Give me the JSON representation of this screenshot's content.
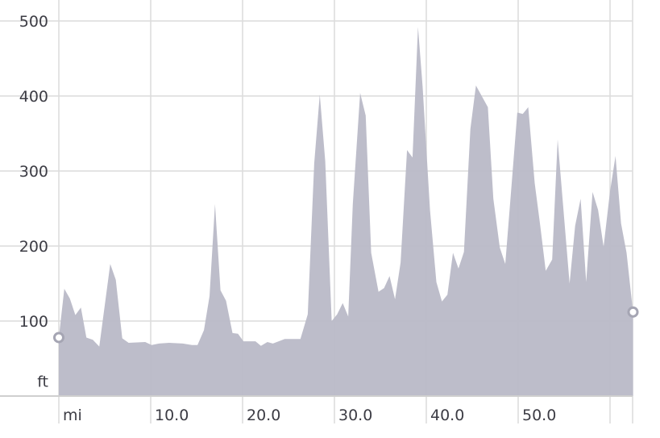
{
  "chart_data": {
    "type": "area",
    "xlabel": "mi",
    "ylabel": "ft",
    "xlim": [
      0,
      62.5
    ],
    "ylim": [
      0,
      500
    ],
    "grid": true,
    "x_ticks": [
      {
        "value": 0,
        "label": "mi"
      },
      {
        "value": 10,
        "label": "10.0"
      },
      {
        "value": 20,
        "label": "20.0"
      },
      {
        "value": 30,
        "label": "30.0"
      },
      {
        "value": 40,
        "label": "40.0"
      },
      {
        "value": 50,
        "label": "50.0"
      },
      {
        "value": 60,
        "label": ""
      }
    ],
    "y_ticks": [
      {
        "value": 500,
        "label": "500"
      },
      {
        "value": 400,
        "label": "400"
      },
      {
        "value": 300,
        "label": "300"
      },
      {
        "value": 200,
        "label": "200"
      },
      {
        "value": 100,
        "label": "100"
      },
      {
        "value": 20,
        "label": "ft"
      }
    ],
    "fill_color": "#b9b9c7",
    "grid_color": "#dcdcdc",
    "x": [
      0,
      0.6,
      1.2,
      1.8,
      2.4,
      3.0,
      3.7,
      4.4,
      5.6,
      6.2,
      6.9,
      7.6,
      9.4,
      10.1,
      10.9,
      12.0,
      13.5,
      14.5,
      15.1,
      15.8,
      16.4,
      17.0,
      17.6,
      18.2,
      18.9,
      19.5,
      20.1,
      21.4,
      22.0,
      22.7,
      23.3,
      24.6,
      26.3,
      27.1,
      27.8,
      28.4,
      29.0,
      29.7,
      30.3,
      30.9,
      31.5,
      32.0,
      32.8,
      33.4,
      34.0,
      34.8,
      35.4,
      36.0,
      36.6,
      37.2,
      37.9,
      38.5,
      39.1,
      39.6,
      40.4,
      41.1,
      41.7,
      42.3,
      42.9,
      43.5,
      44.1,
      44.8,
      45.4,
      46.7,
      47.3,
      48.0,
      48.6,
      49.3,
      49.9,
      50.5,
      51.1,
      51.8,
      52.4,
      53.0,
      53.7,
      54.3,
      55.0,
      55.6,
      56.2,
      56.8,
      57.4,
      58.1,
      58.7,
      59.3,
      60.0,
      60.6,
      61.2,
      61.8,
      62.5
    ],
    "y": [
      78,
      143,
      130,
      108,
      118,
      78,
      75,
      66,
      176,
      155,
      77,
      71,
      72,
      68,
      70,
      71,
      70,
      68,
      68,
      88,
      133,
      256,
      141,
      127,
      84,
      83,
      73,
      73,
      67,
      72,
      70,
      76,
      76,
      109,
      310,
      402,
      313,
      100,
      109,
      124,
      106,
      256,
      404,
      374,
      191,
      139,
      144,
      160,
      129,
      178,
      328,
      318,
      492,
      413,
      248,
      152,
      126,
      135,
      191,
      170,
      192,
      356,
      414,
      385,
      263,
      198,
      176,
      284,
      378,
      376,
      385,
      284,
      227,
      167,
      182,
      342,
      238,
      150,
      227,
      263,
      152,
      272,
      248,
      199,
      273,
      320,
      230,
      191,
      112
    ]
  }
}
